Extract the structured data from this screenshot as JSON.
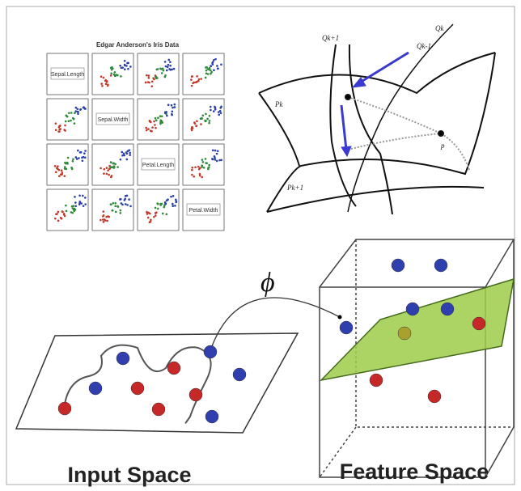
{
  "iris_panel": {
    "title": "Edgar Anderson's Iris Data",
    "variables": [
      "Sepal.Length",
      "Sepal.Width",
      "Petal.Length",
      "Petal.Width"
    ]
  },
  "manifold": {
    "labels": [
      "Qk+1",
      "Qk",
      "Qk-1",
      "Pk",
      "Pk+1",
      "p"
    ]
  },
  "mapping": {
    "symbol": "ϕ"
  },
  "input_space": {
    "label": "Input Space"
  },
  "feature_space": {
    "label": "Feature Space"
  }
}
